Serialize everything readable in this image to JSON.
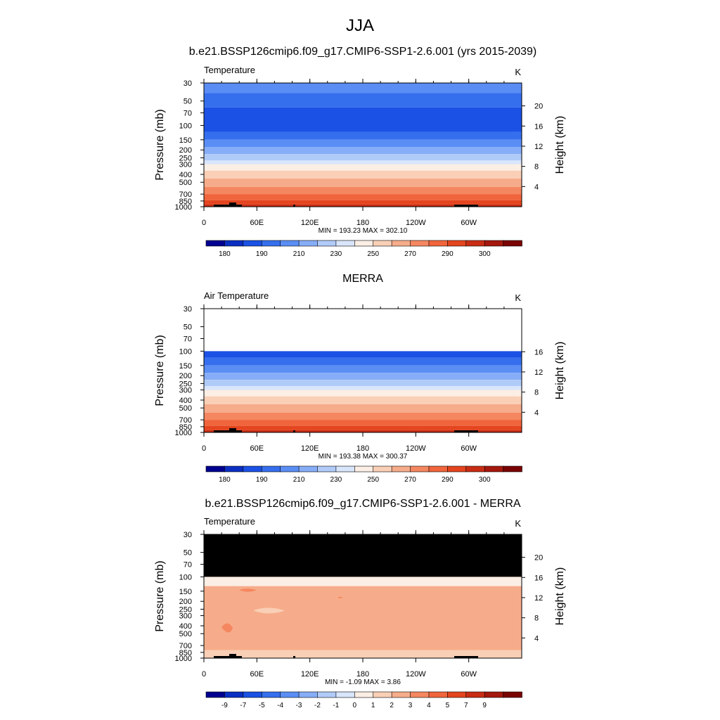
{
  "figure": {
    "title": "JJA",
    "panel_titles": [
      "b.e21.BSSP126cmip6.f09_g17.CMIP6-SSP1-2.6.001 (yrs 2015-2039)",
      "MERRA",
      "b.e21.BSSP126cmip6.f09_g17.CMIP6-SSP1-2.6.001 - MERRA"
    ]
  },
  "chart_data": [
    {
      "type": "heatmap",
      "subtitle": "Temperature",
      "units": "K",
      "ylabel": "Pressure (mb)",
      "ylabel_right": "Height (km)",
      "x_ticks": [
        "0",
        "60E",
        "120E",
        "180",
        "120W",
        "60W"
      ],
      "y_ticks": [
        "30",
        "50",
        "70",
        "100",
        "150",
        "200",
        "250",
        "300",
        "400",
        "500",
        "700",
        "850",
        "1000"
      ],
      "y_ticks_right": [
        "20",
        "16",
        "12",
        "8",
        "4"
      ],
      "ylim_pressure": [
        1000,
        30
      ],
      "stats": "MIN = 193.23  MAX = 302.10",
      "colorbar_labels": [
        "180",
        "190",
        "210",
        "230",
        "250",
        "270",
        "290",
        "300"
      ],
      "colorbar_colors": [
        "#000090",
        "#0a2fc2",
        "#1b51e4",
        "#356fee",
        "#5a8ef5",
        "#86adf7",
        "#b1cbf9",
        "#d8e5fb",
        "#fbeee4",
        "#f9cfb6",
        "#f6ac8a",
        "#f58760",
        "#f1653c",
        "#e4451f",
        "#c82d14",
        "#a5180d",
        "#7a0404"
      ],
      "layers": [
        {
          "p_top": 30,
          "p_bot": 40,
          "color": "#5a8ef5"
        },
        {
          "p_top": 40,
          "p_bot": 60,
          "color": "#356fee"
        },
        {
          "p_top": 60,
          "p_bot": 120,
          "color": "#1b51e4"
        },
        {
          "p_top": 120,
          "p_bot": 150,
          "color": "#356fee"
        },
        {
          "p_top": 150,
          "p_bot": 185,
          "color": "#5a8ef5"
        },
        {
          "p_top": 185,
          "p_bot": 225,
          "color": "#86adf7"
        },
        {
          "p_top": 225,
          "p_bot": 270,
          "color": "#b1cbf9"
        },
        {
          "p_top": 270,
          "p_bot": 300,
          "color": "#d8e5fb"
        },
        {
          "p_top": 300,
          "p_bot": 360,
          "color": "#fbeee4"
        },
        {
          "p_top": 360,
          "p_bot": 450,
          "color": "#f9cfb6"
        },
        {
          "p_top": 450,
          "p_bot": 570,
          "color": "#f6ac8a"
        },
        {
          "p_top": 570,
          "p_bot": 700,
          "color": "#f58760"
        },
        {
          "p_top": 700,
          "p_bot": 830,
          "color": "#f1653c"
        },
        {
          "p_top": 830,
          "p_bot": 940,
          "color": "#e4451f"
        },
        {
          "p_top": 940,
          "p_bot": 1000,
          "color": "#c82d14"
        }
      ]
    },
    {
      "type": "heatmap",
      "subtitle": "Air Temperature",
      "units": "K",
      "ylabel": "Pressure (mb)",
      "ylabel_right": "Height (km)",
      "x_ticks": [
        "0",
        "60E",
        "120E",
        "180",
        "120W",
        "60W"
      ],
      "y_ticks": [
        "30",
        "50",
        "70",
        "100",
        "150",
        "200",
        "250",
        "300",
        "400",
        "500",
        "700",
        "850",
        "1000"
      ],
      "y_ticks_right": [
        "16",
        "12",
        "8",
        "4"
      ],
      "ylim_pressure": [
        1000,
        30
      ],
      "stats": "MIN = 193.38  MAX = 300.37",
      "colorbar_labels": [
        "180",
        "190",
        "210",
        "230",
        "250",
        "270",
        "290",
        "300"
      ],
      "colorbar_colors": [
        "#000090",
        "#0a2fc2",
        "#1b51e4",
        "#356fee",
        "#5a8ef5",
        "#86adf7",
        "#b1cbf9",
        "#d8e5fb",
        "#fbeee4",
        "#f9cfb6",
        "#f6ac8a",
        "#f58760",
        "#f1653c",
        "#e4451f",
        "#c82d14",
        "#a5180d",
        "#7a0404"
      ],
      "layers": [
        {
          "p_top": 100,
          "p_bot": 120,
          "color": "#1b51e4"
        },
        {
          "p_top": 120,
          "p_bot": 150,
          "color": "#356fee"
        },
        {
          "p_top": 150,
          "p_bot": 185,
          "color": "#5a8ef5"
        },
        {
          "p_top": 185,
          "p_bot": 225,
          "color": "#86adf7"
        },
        {
          "p_top": 225,
          "p_bot": 270,
          "color": "#b1cbf9"
        },
        {
          "p_top": 270,
          "p_bot": 300,
          "color": "#d8e5fb"
        },
        {
          "p_top": 300,
          "p_bot": 360,
          "color": "#fbeee4"
        },
        {
          "p_top": 360,
          "p_bot": 450,
          "color": "#f9cfb6"
        },
        {
          "p_top": 450,
          "p_bot": 570,
          "color": "#f6ac8a"
        },
        {
          "p_top": 570,
          "p_bot": 700,
          "color": "#f58760"
        },
        {
          "p_top": 700,
          "p_bot": 830,
          "color": "#f1653c"
        },
        {
          "p_top": 830,
          "p_bot": 940,
          "color": "#e4451f"
        },
        {
          "p_top": 940,
          "p_bot": 1000,
          "color": "#c82d14"
        }
      ]
    },
    {
      "type": "heatmap",
      "subtitle": "Temperature",
      "units": "K",
      "ylabel": "Pressure (mb)",
      "ylabel_right": "Height (km)",
      "x_ticks": [
        "0",
        "60E",
        "120E",
        "180",
        "120W",
        "60W"
      ],
      "y_ticks": [
        "30",
        "50",
        "70",
        "100",
        "150",
        "200",
        "250",
        "300",
        "400",
        "500",
        "700",
        "850",
        "1000"
      ],
      "y_ticks_right": [
        "20",
        "16",
        "12",
        "8",
        "4"
      ],
      "ylim_pressure": [
        1000,
        30
      ],
      "stats": "MIN = -1.09  MAX =   3.86",
      "colorbar_labels": [
        "-9",
        "-7",
        "-5",
        "-4",
        "-3",
        "-2",
        "-1",
        "0",
        "1",
        "2",
        "3",
        "4",
        "5",
        "7",
        "9"
      ],
      "colorbar_colors": [
        "#000090",
        "#0a2fc2",
        "#1b51e4",
        "#356fee",
        "#5a8ef5",
        "#86adf7",
        "#b1cbf9",
        "#d8e5fb",
        "#fbeee4",
        "#f9cfb6",
        "#f6ac8a",
        "#f58760",
        "#f1653c",
        "#e4451f",
        "#c82d14",
        "#a5180d",
        "#7a0404"
      ],
      "layers": [
        {
          "p_top": 30,
          "p_bot": 100,
          "color": "#000000"
        },
        {
          "p_top": 100,
          "p_bot": 130,
          "color": "#fbeee4"
        },
        {
          "p_top": 130,
          "p_bot": 800,
          "color": "#f6ac8a"
        },
        {
          "p_top": 800,
          "p_bot": 1000,
          "color": "#f9cfb6"
        }
      ]
    }
  ]
}
